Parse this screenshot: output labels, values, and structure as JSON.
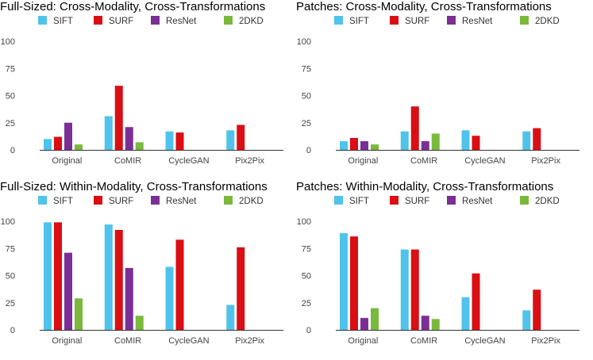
{
  "colors": {
    "SIFT": "#4fc3ec",
    "SURF": "#d90f14",
    "ResNet": "#7b2f95",
    "2DKD": "#7ab93b"
  },
  "chart_data": [
    {
      "type": "bar",
      "title": "Full-Sized: Cross-Modality, Cross-Transformations",
      "categories": [
        "Original",
        "CoMIR",
        "CycleGAN",
        "Pix2Pix"
      ],
      "yticks": [
        "0",
        "25",
        "50",
        "75",
        "100"
      ],
      "ylim": [
        0,
        100
      ],
      "series": [
        {
          "name": "SIFT",
          "values": [
            10,
            31,
            17,
            18
          ]
        },
        {
          "name": "SURF",
          "values": [
            12,
            59,
            16,
            23
          ]
        },
        {
          "name": "ResNet",
          "values": [
            25,
            21,
            null,
            null
          ]
        },
        {
          "name": "2DKD",
          "values": [
            5,
            7,
            null,
            null
          ]
        }
      ]
    },
    {
      "type": "bar",
      "title": "Patches: Cross-Modality, Cross-Transformations",
      "categories": [
        "Original",
        "CoMIR",
        "CycleGAN",
        "Pix2Pix"
      ],
      "yticks": [
        "0",
        "25",
        "50",
        "75",
        "100"
      ],
      "ylim": [
        0,
        100
      ],
      "series": [
        {
          "name": "SIFT",
          "values": [
            8,
            17,
            18,
            17
          ]
        },
        {
          "name": "SURF",
          "values": [
            11,
            40,
            13,
            20
          ]
        },
        {
          "name": "ResNet",
          "values": [
            8,
            8,
            null,
            null
          ]
        },
        {
          "name": "2DKD",
          "values": [
            5,
            15,
            null,
            null
          ]
        }
      ]
    },
    {
      "type": "bar",
      "title": "Full-Sized: Within-Modality, Cross-Transformations",
      "categories": [
        "Original",
        "CoMIR",
        "CycleGAN",
        "Pix2Pix"
      ],
      "yticks": [
        "0",
        "25",
        "50",
        "75",
        "100"
      ],
      "ylim": [
        0,
        100
      ],
      "series": [
        {
          "name": "SIFT",
          "values": [
            99,
            97,
            58,
            23
          ]
        },
        {
          "name": "SURF",
          "values": [
            99,
            92,
            83,
            76
          ]
        },
        {
          "name": "ResNet",
          "values": [
            71,
            57,
            null,
            null
          ]
        },
        {
          "name": "2DKD",
          "values": [
            29,
            13,
            null,
            null
          ]
        }
      ]
    },
    {
      "type": "bar",
      "title": "Patches: Within-Modality, Cross-Transformations",
      "categories": [
        "Original",
        "CoMIR",
        "CycleGAN",
        "Pix2Pix"
      ],
      "yticks": [
        "0",
        "25",
        "50",
        "75",
        "100"
      ],
      "ylim": [
        0,
        100
      ],
      "series": [
        {
          "name": "SIFT",
          "values": [
            89,
            74,
            30,
            18
          ]
        },
        {
          "name": "SURF",
          "values": [
            86,
            74,
            52,
            37
          ]
        },
        {
          "name": "ResNet",
          "values": [
            11,
            13,
            null,
            null
          ]
        },
        {
          "name": "2DKD",
          "values": [
            20,
            10,
            null,
            null
          ]
        }
      ]
    }
  ]
}
